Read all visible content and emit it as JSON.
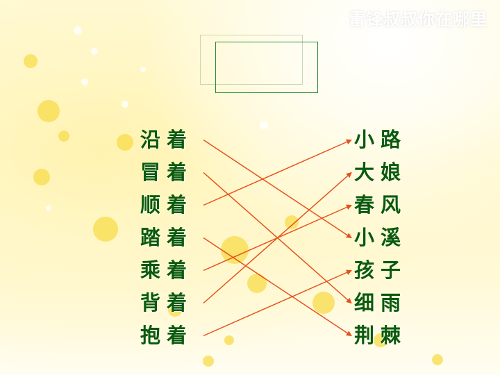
{
  "title": "雷锋叔叔你在哪里",
  "left_items": [
    "沿着",
    "冒着",
    "顺着",
    "踏着",
    "乘着",
    "背着",
    "抱着"
  ],
  "right_items": [
    "小路",
    "大娘",
    "春风",
    "小溪",
    "孩子",
    "细雨",
    "荆棘"
  ],
  "matches": [
    [
      0,
      3
    ],
    [
      1,
      5
    ],
    [
      2,
      0
    ],
    [
      3,
      6
    ],
    [
      4,
      2
    ],
    [
      5,
      1
    ],
    [
      6,
      4
    ]
  ],
  "colors": {
    "text": "#0a5a0a",
    "line": "#e8501a",
    "title": "#ffffff"
  }
}
